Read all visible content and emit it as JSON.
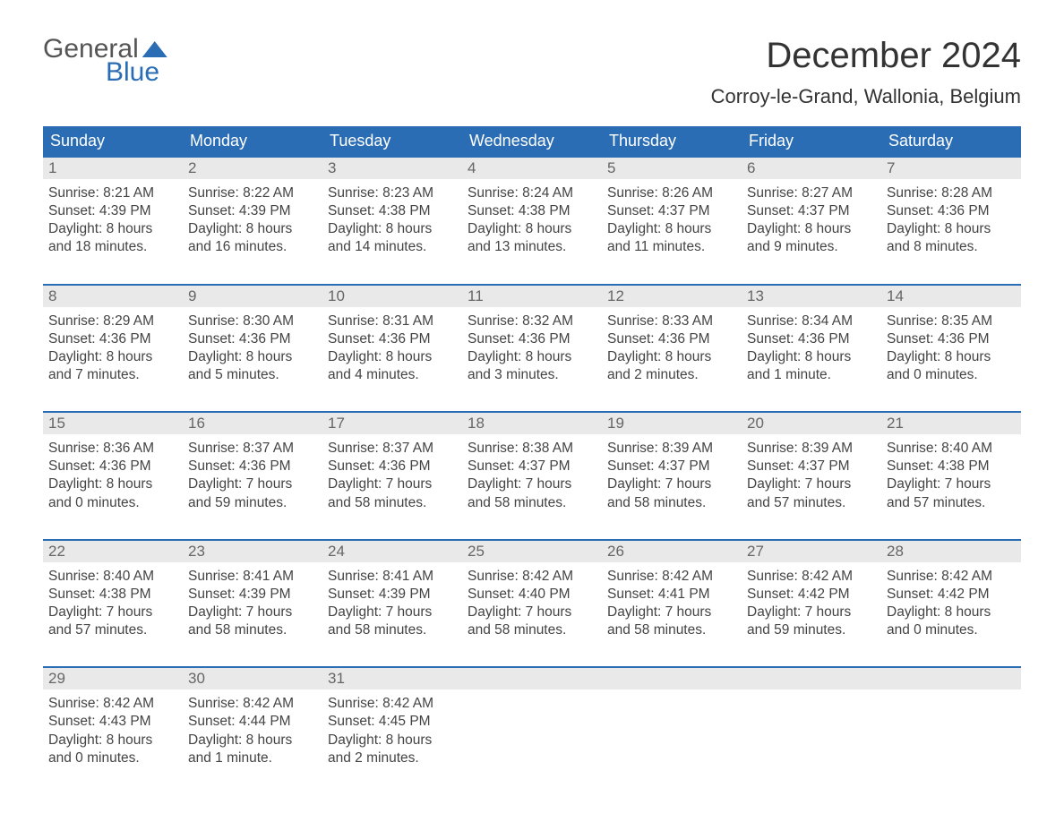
{
  "colors": {
    "brand_blue": "#2b6db5",
    "header_text_gray": "#555",
    "date_bar_bg": "#e9e9e9",
    "body_text": "#444",
    "page_bg": "#ffffff"
  },
  "typography": {
    "month_title_fontsize": 40,
    "location_fontsize": 22,
    "day_header_fontsize": 18,
    "datebar_fontsize": 17,
    "body_fontsize": 15.5
  },
  "logo": {
    "word1": "General",
    "word2": "Blue"
  },
  "month_title": "December 2024",
  "location": "Corroy-le-Grand, Wallonia, Belgium",
  "day_headers": [
    "Sunday",
    "Monday",
    "Tuesday",
    "Wednesday",
    "Thursday",
    "Friday",
    "Saturday"
  ],
  "weeks": [
    [
      {
        "date": "1",
        "sunrise": "Sunrise: 8:21 AM",
        "sunset": "Sunset: 4:39 PM",
        "daylight1": "Daylight: 8 hours",
        "daylight2": "and 18 minutes."
      },
      {
        "date": "2",
        "sunrise": "Sunrise: 8:22 AM",
        "sunset": "Sunset: 4:39 PM",
        "daylight1": "Daylight: 8 hours",
        "daylight2": "and 16 minutes."
      },
      {
        "date": "3",
        "sunrise": "Sunrise: 8:23 AM",
        "sunset": "Sunset: 4:38 PM",
        "daylight1": "Daylight: 8 hours",
        "daylight2": "and 14 minutes."
      },
      {
        "date": "4",
        "sunrise": "Sunrise: 8:24 AM",
        "sunset": "Sunset: 4:38 PM",
        "daylight1": "Daylight: 8 hours",
        "daylight2": "and 13 minutes."
      },
      {
        "date": "5",
        "sunrise": "Sunrise: 8:26 AM",
        "sunset": "Sunset: 4:37 PM",
        "daylight1": "Daylight: 8 hours",
        "daylight2": "and 11 minutes."
      },
      {
        "date": "6",
        "sunrise": "Sunrise: 8:27 AM",
        "sunset": "Sunset: 4:37 PM",
        "daylight1": "Daylight: 8 hours",
        "daylight2": "and 9 minutes."
      },
      {
        "date": "7",
        "sunrise": "Sunrise: 8:28 AM",
        "sunset": "Sunset: 4:36 PM",
        "daylight1": "Daylight: 8 hours",
        "daylight2": "and 8 minutes."
      }
    ],
    [
      {
        "date": "8",
        "sunrise": "Sunrise: 8:29 AM",
        "sunset": "Sunset: 4:36 PM",
        "daylight1": "Daylight: 8 hours",
        "daylight2": "and 7 minutes."
      },
      {
        "date": "9",
        "sunrise": "Sunrise: 8:30 AM",
        "sunset": "Sunset: 4:36 PM",
        "daylight1": "Daylight: 8 hours",
        "daylight2": "and 5 minutes."
      },
      {
        "date": "10",
        "sunrise": "Sunrise: 8:31 AM",
        "sunset": "Sunset: 4:36 PM",
        "daylight1": "Daylight: 8 hours",
        "daylight2": "and 4 minutes."
      },
      {
        "date": "11",
        "sunrise": "Sunrise: 8:32 AM",
        "sunset": "Sunset: 4:36 PM",
        "daylight1": "Daylight: 8 hours",
        "daylight2": "and 3 minutes."
      },
      {
        "date": "12",
        "sunrise": "Sunrise: 8:33 AM",
        "sunset": "Sunset: 4:36 PM",
        "daylight1": "Daylight: 8 hours",
        "daylight2": "and 2 minutes."
      },
      {
        "date": "13",
        "sunrise": "Sunrise: 8:34 AM",
        "sunset": "Sunset: 4:36 PM",
        "daylight1": "Daylight: 8 hours",
        "daylight2": "and 1 minute."
      },
      {
        "date": "14",
        "sunrise": "Sunrise: 8:35 AM",
        "sunset": "Sunset: 4:36 PM",
        "daylight1": "Daylight: 8 hours",
        "daylight2": "and 0 minutes."
      }
    ],
    [
      {
        "date": "15",
        "sunrise": "Sunrise: 8:36 AM",
        "sunset": "Sunset: 4:36 PM",
        "daylight1": "Daylight: 8 hours",
        "daylight2": "and 0 minutes."
      },
      {
        "date": "16",
        "sunrise": "Sunrise: 8:37 AM",
        "sunset": "Sunset: 4:36 PM",
        "daylight1": "Daylight: 7 hours",
        "daylight2": "and 59 minutes."
      },
      {
        "date": "17",
        "sunrise": "Sunrise: 8:37 AM",
        "sunset": "Sunset: 4:36 PM",
        "daylight1": "Daylight: 7 hours",
        "daylight2": "and 58 minutes."
      },
      {
        "date": "18",
        "sunrise": "Sunrise: 8:38 AM",
        "sunset": "Sunset: 4:37 PM",
        "daylight1": "Daylight: 7 hours",
        "daylight2": "and 58 minutes."
      },
      {
        "date": "19",
        "sunrise": "Sunrise: 8:39 AM",
        "sunset": "Sunset: 4:37 PM",
        "daylight1": "Daylight: 7 hours",
        "daylight2": "and 58 minutes."
      },
      {
        "date": "20",
        "sunrise": "Sunrise: 8:39 AM",
        "sunset": "Sunset: 4:37 PM",
        "daylight1": "Daylight: 7 hours",
        "daylight2": "and 57 minutes."
      },
      {
        "date": "21",
        "sunrise": "Sunrise: 8:40 AM",
        "sunset": "Sunset: 4:38 PM",
        "daylight1": "Daylight: 7 hours",
        "daylight2": "and 57 minutes."
      }
    ],
    [
      {
        "date": "22",
        "sunrise": "Sunrise: 8:40 AM",
        "sunset": "Sunset: 4:38 PM",
        "daylight1": "Daylight: 7 hours",
        "daylight2": "and 57 minutes."
      },
      {
        "date": "23",
        "sunrise": "Sunrise: 8:41 AM",
        "sunset": "Sunset: 4:39 PM",
        "daylight1": "Daylight: 7 hours",
        "daylight2": "and 58 minutes."
      },
      {
        "date": "24",
        "sunrise": "Sunrise: 8:41 AM",
        "sunset": "Sunset: 4:39 PM",
        "daylight1": "Daylight: 7 hours",
        "daylight2": "and 58 minutes."
      },
      {
        "date": "25",
        "sunrise": "Sunrise: 8:42 AM",
        "sunset": "Sunset: 4:40 PM",
        "daylight1": "Daylight: 7 hours",
        "daylight2": "and 58 minutes."
      },
      {
        "date": "26",
        "sunrise": "Sunrise: 8:42 AM",
        "sunset": "Sunset: 4:41 PM",
        "daylight1": "Daylight: 7 hours",
        "daylight2": "and 58 minutes."
      },
      {
        "date": "27",
        "sunrise": "Sunrise: 8:42 AM",
        "sunset": "Sunset: 4:42 PM",
        "daylight1": "Daylight: 7 hours",
        "daylight2": "and 59 minutes."
      },
      {
        "date": "28",
        "sunrise": "Sunrise: 8:42 AM",
        "sunset": "Sunset: 4:42 PM",
        "daylight1": "Daylight: 8 hours",
        "daylight2": "and 0 minutes."
      }
    ],
    [
      {
        "date": "29",
        "sunrise": "Sunrise: 8:42 AM",
        "sunset": "Sunset: 4:43 PM",
        "daylight1": "Daylight: 8 hours",
        "daylight2": "and 0 minutes."
      },
      {
        "date": "30",
        "sunrise": "Sunrise: 8:42 AM",
        "sunset": "Sunset: 4:44 PM",
        "daylight1": "Daylight: 8 hours",
        "daylight2": "and 1 minute."
      },
      {
        "date": "31",
        "sunrise": "Sunrise: 8:42 AM",
        "sunset": "Sunset: 4:45 PM",
        "daylight1": "Daylight: 8 hours",
        "daylight2": "and 2 minutes."
      },
      null,
      null,
      null,
      null
    ]
  ]
}
